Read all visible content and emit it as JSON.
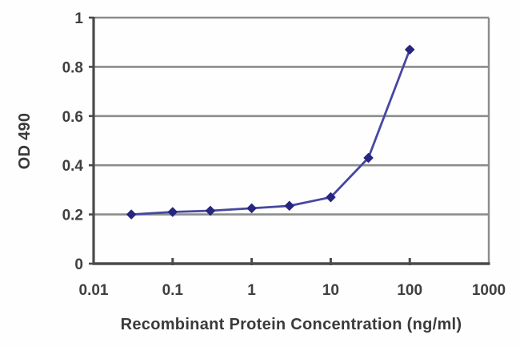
{
  "chart_data": {
    "type": "line",
    "title": "",
    "xlabel": "Recombinant Protein Concentration (ng/ml)",
    "ylabel": "OD 490",
    "x": [
      0.03,
      0.1,
      0.3,
      1,
      3,
      10,
      30,
      100
    ],
    "y": [
      0.2,
      0.21,
      0.215,
      0.225,
      0.235,
      0.27,
      0.43,
      0.87
    ],
    "x_scale": "log",
    "xlim": [
      0.01,
      1000
    ],
    "ylim": [
      0,
      1
    ],
    "xticks": [
      {
        "value": 0.01,
        "label": "0.01"
      },
      {
        "value": 0.1,
        "label": "0.1"
      },
      {
        "value": 1,
        "label": "1"
      },
      {
        "value": 10,
        "label": "10"
      },
      {
        "value": 100,
        "label": "100"
      },
      {
        "value": 1000,
        "label": "1000"
      }
    ],
    "yticks": [
      {
        "value": 0,
        "label": "0"
      },
      {
        "value": 0.2,
        "label": "0.2"
      },
      {
        "value": 0.4,
        "label": "0.4"
      },
      {
        "value": 0.6,
        "label": "0.6"
      },
      {
        "value": 0.8,
        "label": "0.8"
      },
      {
        "value": 1,
        "label": "1"
      }
    ],
    "grid": "horizontal",
    "legend": "none",
    "marker": "diamond",
    "colors": {
      "line": "#4747a1",
      "marker": "#26267e",
      "grid": "#8c8c8c",
      "frame": "#8c8c8c",
      "axis": "#4a4a4a",
      "text": "#3f3f3f",
      "background": "#fefefe"
    }
  }
}
